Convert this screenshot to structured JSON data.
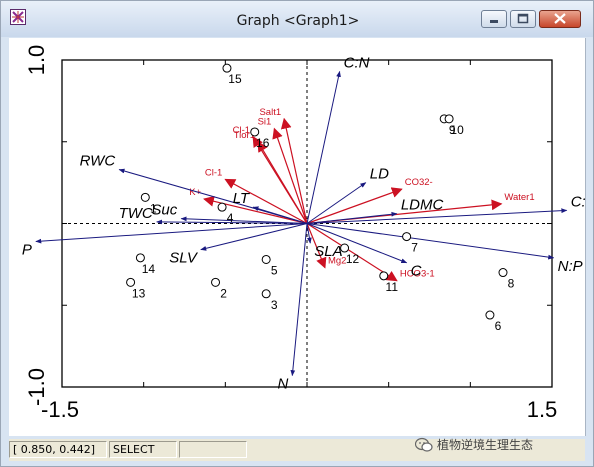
{
  "window": {
    "title": "Graph <Graph1>",
    "buttons": {
      "minimize": "minimize-icon",
      "maximize": "maximize-icon",
      "close": "close-icon"
    }
  },
  "status": {
    "coords": "[ 0.850, 0.442]",
    "mode": "SELECT"
  },
  "watermark": "植物逆境生理生态",
  "colors": {
    "sites": "#000000",
    "species": "#1a1a80",
    "env": "#cc1122"
  },
  "chart_data": {
    "type": "scatter",
    "xlim": [
      -1.5,
      1.5
    ],
    "ylim": [
      -1.0,
      1.0
    ],
    "x_ticks": [
      "-1.5",
      "1.5"
    ],
    "y_ticks": [
      "1.0",
      "-1.0"
    ],
    "grid": false,
    "sites": [
      {
        "label": "1",
        "x": -0.99,
        "y": 0.16
      },
      {
        "label": "2",
        "x": -0.56,
        "y": -0.36
      },
      {
        "label": "3",
        "x": -0.25,
        "y": -0.43
      },
      {
        "label": "4",
        "x": -0.52,
        "y": 0.1
      },
      {
        "label": "5",
        "x": -0.25,
        "y": -0.22
      },
      {
        "label": "6",
        "x": 1.12,
        "y": -0.56
      },
      {
        "label": "7",
        "x": 0.61,
        "y": -0.08
      },
      {
        "label": "8",
        "x": 1.2,
        "y": -0.3
      },
      {
        "label": "9",
        "x": 0.84,
        "y": 0.64
      },
      {
        "label": "10",
        "x": 0.87,
        "y": 0.64
      },
      {
        "label": "11",
        "x": 0.47,
        "y": -0.32
      },
      {
        "label": "12",
        "x": 0.23,
        "y": -0.15
      },
      {
        "label": "13",
        "x": -1.08,
        "y": -0.36
      },
      {
        "label": "14",
        "x": -1.02,
        "y": -0.21
      },
      {
        "label": "15",
        "x": -0.49,
        "y": 0.95
      },
      {
        "label": "16",
        "x": -0.32,
        "y": 0.56
      }
    ],
    "species": [
      {
        "label": "C:N",
        "x": 0.2,
        "y": 0.93
      },
      {
        "label": "RWC",
        "x": -1.15,
        "y": 0.33
      },
      {
        "label": "LD",
        "x": 0.36,
        "y": 0.25
      },
      {
        "label": "LT",
        "x": -0.33,
        "y": 0.1
      },
      {
        "label": "Suc",
        "x": -0.77,
        "y": 0.03
      },
      {
        "label": "TWC",
        "x": -0.92,
        "y": 0.01
      },
      {
        "label": "LDMC",
        "x": 0.55,
        "y": 0.06
      },
      {
        "label": "C:P",
        "x": 1.59,
        "y": 0.08
      },
      {
        "label": "P",
        "x": -1.66,
        "y": -0.11
      },
      {
        "label": "SLV",
        "x": -0.65,
        "y": -0.16
      },
      {
        "label": "SLA",
        "x": 0.02,
        "y": -0.12
      },
      {
        "label": "C",
        "x": 0.61,
        "y": -0.24
      },
      {
        "label": "N:P",
        "x": 1.51,
        "y": -0.21
      },
      {
        "label": "N",
        "x": -0.09,
        "y": -0.93
      }
    ],
    "environment": [
      {
        "label": "Salt1",
        "x": -0.14,
        "y": 0.64
      },
      {
        "label": "Cl-1",
        "x": -0.33,
        "y": 0.53
      },
      {
        "label": "Si1",
        "x": -0.2,
        "y": 0.58
      },
      {
        "label": "Tior1",
        "x": -0.3,
        "y": 0.5
      },
      {
        "label": "Cl-1",
        "x": -0.5,
        "y": 0.27
      },
      {
        "label": "K+",
        "x": -0.63,
        "y": 0.15
      },
      {
        "label": "CO32-",
        "x": 0.58,
        "y": 0.21
      },
      {
        "label": "Water1",
        "x": 1.19,
        "y": 0.12
      },
      {
        "label": "Mg2",
        "x": 0.11,
        "y": -0.27
      },
      {
        "label": "HCO3-1",
        "x": 0.55,
        "y": -0.35
      }
    ]
  }
}
